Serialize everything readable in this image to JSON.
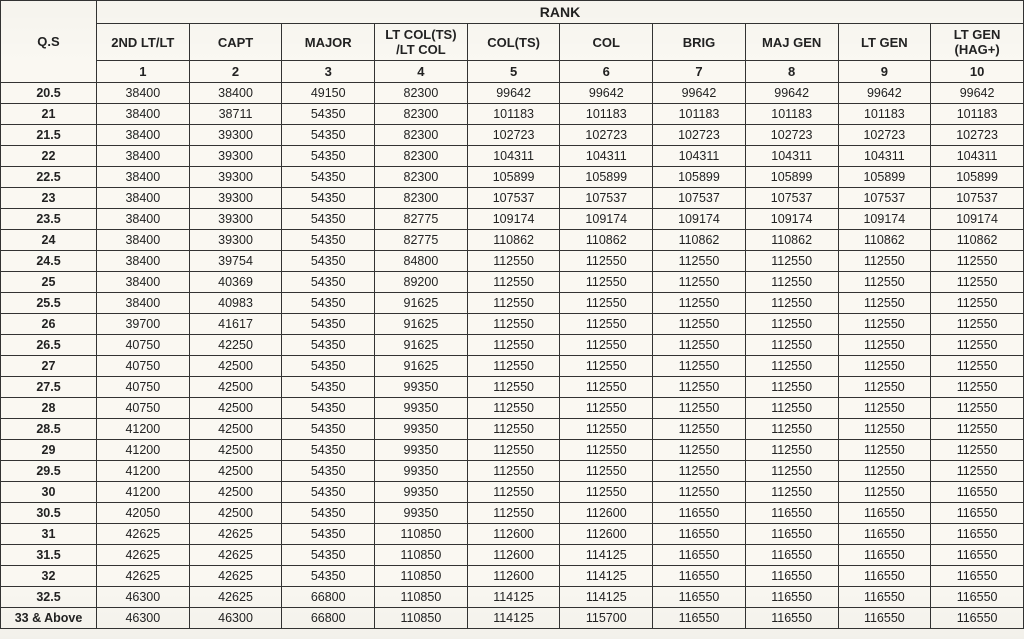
{
  "table": {
    "type": "table",
    "background_color": "#faf8f2",
    "border_color": "#333333",
    "text_color": "#222222",
    "header_fontsize": 13,
    "cell_fontsize": 12.5,
    "qs_header": "Q.S",
    "rank_title": "RANK",
    "columns": [
      {
        "label": "2ND LT/LT",
        "num": "1"
      },
      {
        "label": "CAPT",
        "num": "2"
      },
      {
        "label": "MAJOR",
        "num": "3"
      },
      {
        "label": "LT COL(TS) /LT COL",
        "num": "4"
      },
      {
        "label": "COL(TS)",
        "num": "5"
      },
      {
        "label": "COL",
        "num": "6"
      },
      {
        "label": "BRIG",
        "num": "7"
      },
      {
        "label": "MAJ GEN",
        "num": "8"
      },
      {
        "label": "LT GEN",
        "num": "9"
      },
      {
        "label": "LT GEN (HAG+)",
        "num": "10"
      }
    ],
    "rows": [
      {
        "qs": "20.5",
        "v": [
          "38400",
          "38400",
          "49150",
          "82300",
          "99642",
          "99642",
          "99642",
          "99642",
          "99642",
          "99642"
        ]
      },
      {
        "qs": "21",
        "v": [
          "38400",
          "38711",
          "54350",
          "82300",
          "101183",
          "101183",
          "101183",
          "101183",
          "101183",
          "101183"
        ]
      },
      {
        "qs": "21.5",
        "v": [
          "38400",
          "39300",
          "54350",
          "82300",
          "102723",
          "102723",
          "102723",
          "102723",
          "102723",
          "102723"
        ]
      },
      {
        "qs": "22",
        "v": [
          "38400",
          "39300",
          "54350",
          "82300",
          "104311",
          "104311",
          "104311",
          "104311",
          "104311",
          "104311"
        ]
      },
      {
        "qs": "22.5",
        "v": [
          "38400",
          "39300",
          "54350",
          "82300",
          "105899",
          "105899",
          "105899",
          "105899",
          "105899",
          "105899"
        ]
      },
      {
        "qs": "23",
        "v": [
          "38400",
          "39300",
          "54350",
          "82300",
          "107537",
          "107537",
          "107537",
          "107537",
          "107537",
          "107537"
        ]
      },
      {
        "qs": "23.5",
        "v": [
          "38400",
          "39300",
          "54350",
          "82775",
          "109174",
          "109174",
          "109174",
          "109174",
          "109174",
          "109174"
        ]
      },
      {
        "qs": "24",
        "v": [
          "38400",
          "39300",
          "54350",
          "82775",
          "110862",
          "110862",
          "110862",
          "110862",
          "110862",
          "110862"
        ]
      },
      {
        "qs": "24.5",
        "v": [
          "38400",
          "39754",
          "54350",
          "84800",
          "112550",
          "112550",
          "112550",
          "112550",
          "112550",
          "112550"
        ]
      },
      {
        "qs": "25",
        "v": [
          "38400",
          "40369",
          "54350",
          "89200",
          "112550",
          "112550",
          "112550",
          "112550",
          "112550",
          "112550"
        ]
      },
      {
        "qs": "25.5",
        "v": [
          "38400",
          "40983",
          "54350",
          "91625",
          "112550",
          "112550",
          "112550",
          "112550",
          "112550",
          "112550"
        ]
      },
      {
        "qs": "26",
        "v": [
          "39700",
          "41617",
          "54350",
          "91625",
          "112550",
          "112550",
          "112550",
          "112550",
          "112550",
          "112550"
        ]
      },
      {
        "qs": "26.5",
        "v": [
          "40750",
          "42250",
          "54350",
          "91625",
          "112550",
          "112550",
          "112550",
          "112550",
          "112550",
          "112550"
        ]
      },
      {
        "qs": "27",
        "v": [
          "40750",
          "42500",
          "54350",
          "91625",
          "112550",
          "112550",
          "112550",
          "112550",
          "112550",
          "112550"
        ]
      },
      {
        "qs": "27.5",
        "v": [
          "40750",
          "42500",
          "54350",
          "99350",
          "112550",
          "112550",
          "112550",
          "112550",
          "112550",
          "112550"
        ]
      },
      {
        "qs": "28",
        "v": [
          "40750",
          "42500",
          "54350",
          "99350",
          "112550",
          "112550",
          "112550",
          "112550",
          "112550",
          "112550"
        ]
      },
      {
        "qs": "28.5",
        "v": [
          "41200",
          "42500",
          "54350",
          "99350",
          "112550",
          "112550",
          "112550",
          "112550",
          "112550",
          "112550"
        ]
      },
      {
        "qs": "29",
        "v": [
          "41200",
          "42500",
          "54350",
          "99350",
          "112550",
          "112550",
          "112550",
          "112550",
          "112550",
          "112550"
        ]
      },
      {
        "qs": "29.5",
        "v": [
          "41200",
          "42500",
          "54350",
          "99350",
          "112550",
          "112550",
          "112550",
          "112550",
          "112550",
          "112550"
        ]
      },
      {
        "qs": "30",
        "v": [
          "41200",
          "42500",
          "54350",
          "99350",
          "112550",
          "112550",
          "112550",
          "112550",
          "112550",
          "116550"
        ]
      },
      {
        "qs": "30.5",
        "v": [
          "42050",
          "42500",
          "54350",
          "99350",
          "112550",
          "112600",
          "116550",
          "116550",
          "116550",
          "116550"
        ]
      },
      {
        "qs": "31",
        "v": [
          "42625",
          "42625",
          "54350",
          "110850",
          "112600",
          "112600",
          "116550",
          "116550",
          "116550",
          "116550"
        ]
      },
      {
        "qs": "31.5",
        "v": [
          "42625",
          "42625",
          "54350",
          "110850",
          "112600",
          "114125",
          "116550",
          "116550",
          "116550",
          "116550"
        ]
      },
      {
        "qs": "32",
        "v": [
          "42625",
          "42625",
          "54350",
          "110850",
          "112600",
          "114125",
          "116550",
          "116550",
          "116550",
          "116550"
        ]
      },
      {
        "qs": "32.5",
        "v": [
          "46300",
          "42625",
          "66800",
          "110850",
          "114125",
          "114125",
          "116550",
          "116550",
          "116550",
          "116550"
        ]
      },
      {
        "qs": "33 & Above",
        "v": [
          "46300",
          "46300",
          "66800",
          "110850",
          "114125",
          "115700",
          "116550",
          "116550",
          "116550",
          "116550"
        ]
      }
    ]
  }
}
